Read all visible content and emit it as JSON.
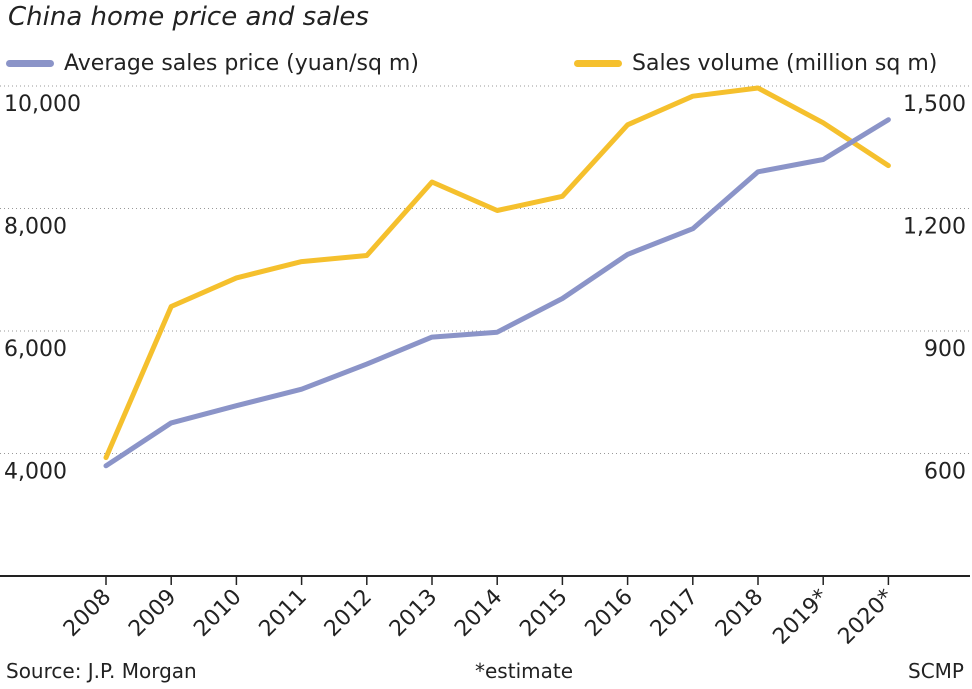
{
  "title": "China home price and sales",
  "legend": {
    "price_label": "Average sales price (yuan/sq m)",
    "volume_label": "Sales volume (million sq m)"
  },
  "colors": {
    "price": "#8b94c8",
    "volume": "#f5c02d",
    "grid": "#999999",
    "axis": "#222222"
  },
  "footer": {
    "source": "Source: J.P. Morgan",
    "note": "*estimate",
    "credit": "SCMP"
  },
  "chart_data": {
    "type": "line",
    "categories": [
      "2008",
      "2009",
      "2010",
      "2011",
      "2012",
      "2013",
      "2014",
      "2015",
      "2016",
      "2017",
      "2018",
      "2019*",
      "2020*"
    ],
    "y_left": {
      "ticks": [
        "10,000",
        "8,000",
        "6,000",
        "4,000"
      ],
      "tick_values": [
        10000,
        8000,
        6000,
        4000
      ],
      "ylim": [
        2000,
        10000
      ]
    },
    "y_right": {
      "ticks": [
        "1,500",
        "1,200",
        "900",
        "600"
      ],
      "tick_values": [
        1500,
        1200,
        900,
        600
      ],
      "ylim": [
        300,
        1500
      ]
    },
    "grid": true,
    "series": [
      {
        "name": "Average sales price (yuan/sq m)",
        "axis": "left",
        "values": [
          3800,
          4500,
          4780,
          5050,
          5460,
          5900,
          5980,
          6530,
          7250,
          7670,
          8600,
          8800,
          9450
        ]
      },
      {
        "name": "Sales volume (million sq m)",
        "axis": "right",
        "values": [
          590,
          960,
          1030,
          1070,
          1085,
          1265,
          1195,
          1230,
          1405,
          1475,
          1495,
          1410,
          1305
        ]
      }
    ]
  }
}
